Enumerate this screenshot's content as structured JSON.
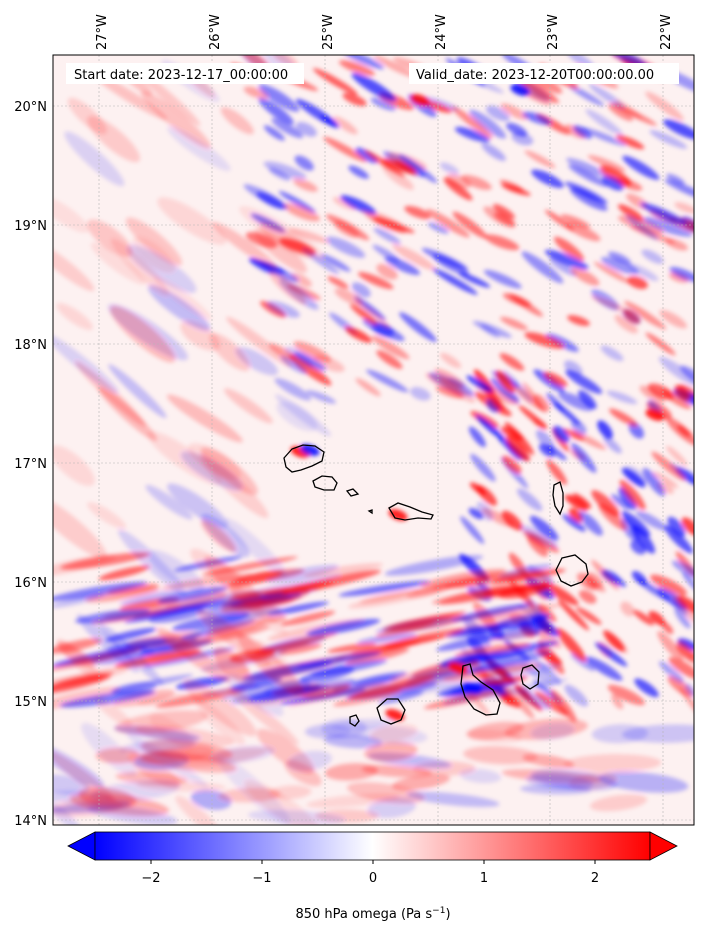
{
  "header": {
    "start_label": "Start date: 2023-12-17_00:00:00",
    "valid_label": "Valid_date: 2023-12-20T00:00:00.00"
  },
  "lon_ticks": [
    "27°W",
    "26°W",
    "25°W",
    "24°W",
    "23°W",
    "22°W"
  ],
  "lat_ticks": [
    "20°N",
    "19°N",
    "18°N",
    "17°N",
    "16°N",
    "15°N",
    "14°N"
  ],
  "colorbar": {
    "ticks": [
      "−2",
      "−1",
      "0",
      "1",
      "2"
    ],
    "label": "850 hPa omega (Pa s",
    "label_sup": "−1",
    "label_close": ")"
  },
  "chart_data": {
    "type": "heatmap",
    "variable": "850 hPa omega",
    "units": "Pa s−1",
    "lon_range": [
      -27.4,
      -21.8
    ],
    "lat_range": [
      13.95,
      20.4
    ],
    "color_range": [
      -2.5,
      2.5
    ],
    "colormap": "bwr",
    "colors": {
      "negative": "#0000ff",
      "zero": "#ffffff",
      "positive": "#ff0000"
    },
    "extend": "both",
    "gridlines": true,
    "islands": [
      "Santo Antão",
      "São Vicente",
      "Santa Luzia",
      "São Nicolau",
      "Sal",
      "Boa Vista",
      "Maio",
      "Santiago",
      "Fogo",
      "Brava"
    ]
  }
}
